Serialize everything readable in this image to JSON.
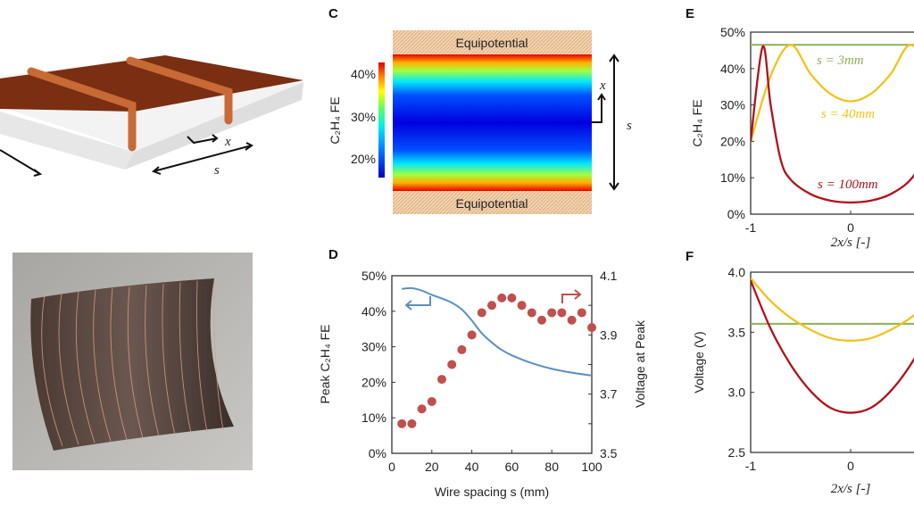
{
  "panels": {
    "A": {
      "label_x": "x",
      "label_s": "s"
    },
    "C": {
      "label": "C",
      "equipotential_top": "Equipotential",
      "equipotential_bottom": "Equipotential",
      "colorbar_label": "C₂H₄ FE",
      "colorbar_ticks": [
        "40%",
        "30%",
        "20%"
      ],
      "colormap": "jet",
      "arrow_x": "x",
      "arrow_s": "s"
    },
    "D": {
      "label": "D"
    },
    "E": {
      "label": "E"
    },
    "F": {
      "label": "F"
    }
  },
  "chart_data": [
    {
      "panel": "D",
      "type": "line+scatter",
      "xlabel": "Wire spacing s (mm)",
      "ylabel": "Peak C₂H₄ FE",
      "y2label": "Voltage at Peak",
      "xlim": [
        0,
        100
      ],
      "ylim": [
        0,
        50
      ],
      "y2lim": [
        3.5,
        4.1
      ],
      "xticks": [
        "0",
        "20",
        "40",
        "60",
        "80",
        "100"
      ],
      "yticks": [
        "0%",
        "10%",
        "20%",
        "30%",
        "40%",
        "50%"
      ],
      "y2ticks": [
        "3.5",
        "3.7",
        "3.9",
        "4.1"
      ],
      "series": [
        {
          "axis": "left",
          "kind": "line",
          "color": "#5b8fc4",
          "x": [
            5,
            10,
            15,
            20,
            25,
            30,
            35,
            40,
            45,
            50,
            55,
            60,
            70,
            80,
            90,
            100
          ],
          "y": [
            46.3,
            46.5,
            45.8,
            44.6,
            43.6,
            42.4,
            40.5,
            37.4,
            33.8,
            31.2,
            29.1,
            27.6,
            25.4,
            23.8,
            22.7,
            21.9
          ]
        },
        {
          "axis": "right",
          "kind": "scatter",
          "color": "#c0504d",
          "x": [
            5,
            10,
            15,
            20,
            25,
            30,
            35,
            40,
            45,
            50,
            55,
            60,
            65,
            70,
            75,
            80,
            85,
            90,
            95,
            100
          ],
          "y": [
            3.6,
            3.6,
            3.65,
            3.675,
            3.75,
            3.8,
            3.85,
            3.9,
            3.975,
            4.0,
            4.025,
            4.025,
            4.0,
            3.975,
            3.95,
            3.975,
            3.975,
            3.95,
            3.975,
            3.925
          ]
        }
      ]
    },
    {
      "panel": "E",
      "type": "line",
      "xlabel": "2x/s [-]",
      "ylabel": "C₂H₄ FE",
      "xlim": [
        -1,
        1
      ],
      "ylim": [
        0,
        50
      ],
      "xticks": [
        "-1",
        "0"
      ],
      "yticks": [
        "0%",
        "10%",
        "20%",
        "30%",
        "40%",
        "50%"
      ],
      "series": [
        {
          "name": "s = 3mm",
          "color": "#8db05a",
          "x": [
            -1,
            1
          ],
          "y": [
            46.5,
            46.5
          ]
        },
        {
          "name": "s = 40mm",
          "color": "#f2c21b",
          "x": [
            -1,
            -0.8,
            -0.6,
            -0.4,
            -0.2,
            0,
            0.2,
            0.4,
            0.6,
            0.8,
            1
          ],
          "y": [
            20,
            38,
            46.5,
            38.5,
            33,
            31,
            33,
            38.5,
            46.5,
            38,
            20
          ]
        },
        {
          "name": "s = 100mm",
          "color": "#b0121b",
          "x": [
            -1,
            -0.88,
            -0.8,
            -0.7,
            -0.6,
            -0.4,
            -0.2,
            0,
            0.2,
            0.4,
            0.6,
            0.7,
            0.8,
            0.88,
            1
          ],
          "y": [
            20,
            46,
            30,
            15,
            9.5,
            5.5,
            3.7,
            3.2,
            3.7,
            5.5,
            9.5,
            15,
            30,
            46,
            20
          ]
        }
      ]
    },
    {
      "panel": "F",
      "type": "line",
      "xlabel": "2x/s [-]",
      "ylabel": "Voltage (V)",
      "xlim": [
        -1,
        1
      ],
      "ylim": [
        2.5,
        4.0
      ],
      "xticks": [
        "-1",
        "0"
      ],
      "yticks": [
        "2.5",
        "3.0",
        "3.5",
        "4.0"
      ],
      "series": [
        {
          "color": "#8db05a",
          "x": [
            -1,
            1
          ],
          "y": [
            3.57,
            3.57
          ]
        },
        {
          "color": "#f2c21b",
          "x": [
            -1,
            -0.8,
            -0.6,
            -0.4,
            -0.2,
            0,
            0.2,
            0.4,
            0.6,
            0.8,
            1
          ],
          "y": [
            3.95,
            3.76,
            3.62,
            3.52,
            3.45,
            3.43,
            3.45,
            3.52,
            3.62,
            3.76,
            3.95
          ]
        },
        {
          "color": "#b0121b",
          "x": [
            -1,
            -0.8,
            -0.6,
            -0.4,
            -0.2,
            0,
            0.2,
            0.4,
            0.6,
            0.8,
            1
          ],
          "y": [
            3.93,
            3.53,
            3.23,
            3.01,
            2.87,
            2.83,
            2.87,
            3.01,
            3.23,
            3.53,
            3.93
          ]
        }
      ]
    }
  ]
}
